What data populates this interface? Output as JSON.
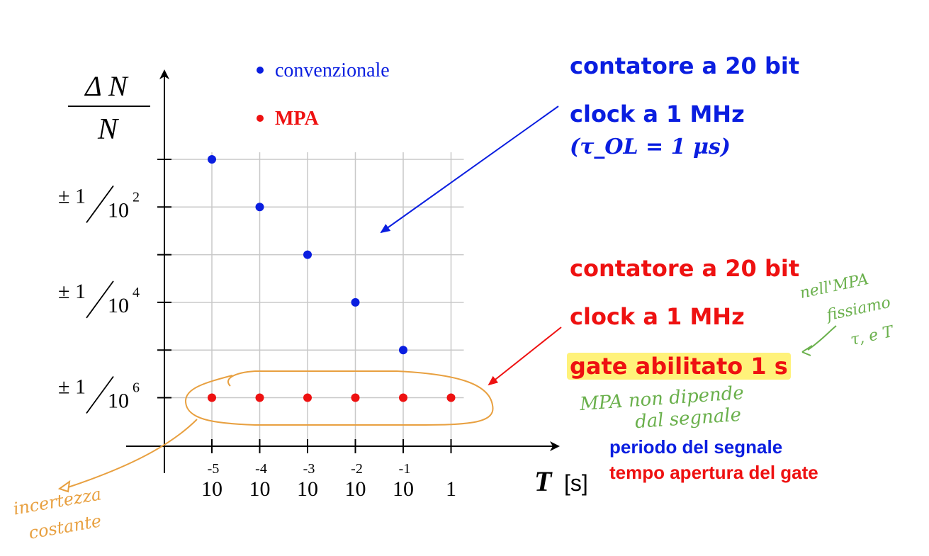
{
  "chart_data": {
    "type": "scatter",
    "ylabel_num": "Δ N",
    "ylabel_den": "N",
    "xlabel": "T",
    "xunit": "[s]",
    "x_ticks": [
      {
        "base": "10",
        "exp": "-5"
      },
      {
        "base": "10",
        "exp": "-4"
      },
      {
        "base": "10",
        "exp": "-3"
      },
      {
        "base": "10",
        "exp": "-2"
      },
      {
        "base": "10",
        "exp": "-1"
      },
      {
        "base": "1",
        "exp": ""
      }
    ],
    "x": [
      1e-05,
      0.0001,
      0.001,
      0.01,
      0.1,
      1
    ],
    "y_ticks": [
      {
        "pm": "± 1",
        "base": "10",
        "exp": "2",
        "value": 0.01
      },
      {
        "pm": "± 1",
        "base": "10",
        "exp": "4",
        "value": 0.0001
      },
      {
        "pm": "± 1",
        "base": "10",
        "exp": "6",
        "value": 1e-06
      }
    ],
    "ylim": [
      1e-07,
      1
    ],
    "x_scale": "log",
    "y_scale": "log",
    "grid": true,
    "legend_position": "top-left",
    "series": [
      {
        "name": "convenzionale",
        "color": "#0a1ee0",
        "x": [
          1e-05,
          0.0001,
          0.001,
          0.01,
          0.1
        ],
        "y": [
          0.1,
          0.01,
          0.001,
          0.0001,
          1e-05
        ]
      },
      {
        "name": "MPA",
        "color": "#ee1111",
        "x": [
          1e-05,
          0.0001,
          0.001,
          0.01,
          0.1,
          1
        ],
        "y": [
          1e-06,
          1e-06,
          1e-06,
          1e-06,
          1e-06,
          1e-06
        ]
      }
    ]
  },
  "notes": {
    "blue_counter": "contatore a 20 bit",
    "blue_clock": "clock a 1 MHz",
    "blue_tau": "(τ_OL = 1 μs)",
    "red_counter": "contatore a 20 bit",
    "red_clock": "clock a 1 MHz",
    "red_gate": "gate abilitato 1 s",
    "period_label": "periodo del segnale",
    "gate_time_label": "tempo apertura del gate"
  },
  "handwriting": {
    "green_1": "nell'MPA",
    "green_2": "fissiamo",
    "green_3": "τ, e T",
    "green_4": "MPA non dipende",
    "green_5": "dal segnale",
    "orange_1": "incertezza",
    "orange_2": "costante"
  },
  "colors": {
    "blue": "#0a1ee0",
    "red": "#ee1111",
    "orange": "#e8a040",
    "green": "#6ab04c",
    "highlight": "#fff27a"
  }
}
